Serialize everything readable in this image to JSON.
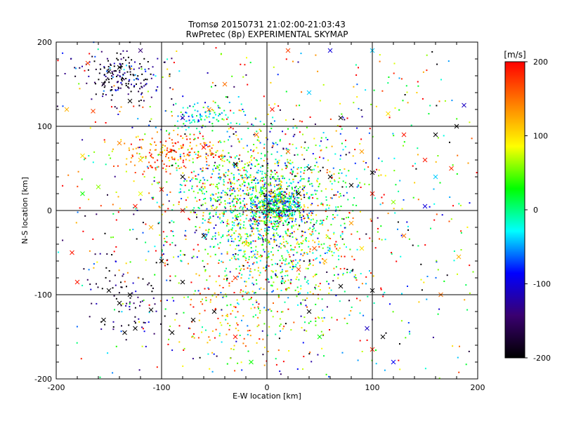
{
  "chart_data": {
    "type": "scatter",
    "title": "Tromsø 20150731 21:02:00-21:03:43",
    "subtitle": "RwPretec (8p) EXPERIMENTAL SKYMAP",
    "xlabel": "E-W location [km]",
    "ylabel": "N-S location [km]",
    "xlim": [
      -200,
      200
    ],
    "ylim": [
      -200,
      200
    ],
    "xticks": [
      "-200",
      "-100",
      "0",
      "100",
      "200"
    ],
    "yticks": [
      "-200",
      "-100",
      "0",
      "100",
      "200"
    ],
    "grid": true,
    "colorbar": {
      "title": "[m/s]",
      "range": [
        -200,
        200
      ],
      "ticks": [
        "200",
        "100",
        "0",
        "-100",
        "-200"
      ],
      "colormap": [
        "#000000",
        "#3a0070",
        "#0000ff",
        "#00ffff",
        "#00ff00",
        "#ffff00",
        "#ff8000",
        "#ff0000"
      ]
    },
    "clusters": [
      {
        "x": 10,
        "y": 5,
        "sx": 12,
        "sy": 10,
        "n": 420,
        "v": -40,
        "vs": 80
      },
      {
        "x": -10,
        "y": 25,
        "sx": 40,
        "sy": 30,
        "n": 700,
        "v": 20,
        "vs": 70
      },
      {
        "x": 10,
        "y": -40,
        "sx": 35,
        "sy": 45,
        "n": 650,
        "v": 30,
        "vs": 70
      },
      {
        "x": -90,
        "y": 70,
        "sx": 25,
        "sy": 12,
        "n": 180,
        "v": 150,
        "vs": 40
      },
      {
        "x": -140,
        "y": 160,
        "sx": 18,
        "sy": 15,
        "n": 190,
        "v": -160,
        "vs": 60
      },
      {
        "x": -60,
        "y": 110,
        "sx": 20,
        "sy": 8,
        "n": 90,
        "v": -20,
        "vs": 50
      },
      {
        "x": -130,
        "y": -110,
        "sx": 20,
        "sy": 25,
        "n": 80,
        "v": -170,
        "vs": 50
      },
      {
        "x": -40,
        "y": -130,
        "sx": 25,
        "sy": 20,
        "n": 80,
        "v": 130,
        "vs": 60
      },
      {
        "x": 0,
        "y": 0,
        "sx": 110,
        "sy": 110,
        "n": 1300,
        "v": 40,
        "vs": 140
      }
    ],
    "crosses": [
      {
        "x": -150,
        "y": 165,
        "v": -200
      },
      {
        "x": -140,
        "y": 170,
        "v": -200
      },
      {
        "x": -155,
        "y": 150,
        "v": -180
      },
      {
        "x": -120,
        "y": 190,
        "v": -140
      },
      {
        "x": -170,
        "y": 175,
        "v": 170
      },
      {
        "x": -165,
        "y": 118,
        "v": 170
      },
      {
        "x": -130,
        "y": 130,
        "v": -200
      },
      {
        "x": -80,
        "y": 110,
        "v": -120
      },
      {
        "x": -55,
        "y": 120,
        "v": 140
      },
      {
        "x": -40,
        "y": 150,
        "v": 150
      },
      {
        "x": 20,
        "y": 190,
        "v": 170
      },
      {
        "x": 60,
        "y": 190,
        "v": -100
      },
      {
        "x": 100,
        "y": 190,
        "v": -40
      },
      {
        "x": 115,
        "y": 115,
        "v": 100
      },
      {
        "x": 130,
        "y": 90,
        "v": 190
      },
      {
        "x": 160,
        "y": 90,
        "v": -200
      },
      {
        "x": 180,
        "y": 100,
        "v": -200
      },
      {
        "x": 187,
        "y": 125,
        "v": -110
      },
      {
        "x": 150,
        "y": 60,
        "v": 190
      },
      {
        "x": 175,
        "y": 50,
        "v": 180
      },
      {
        "x": 160,
        "y": 40,
        "v": -40
      },
      {
        "x": 100,
        "y": 45,
        "v": -200
      },
      {
        "x": 80,
        "y": 30,
        "v": -200
      },
      {
        "x": 60,
        "y": 40,
        "v": -200
      },
      {
        "x": 100,
        "y": 20,
        "v": 190
      },
      {
        "x": 120,
        "y": 10,
        "v": 60
      },
      {
        "x": 150,
        "y": 5,
        "v": -100
      },
      {
        "x": 130,
        "y": -30,
        "v": 150
      },
      {
        "x": 80,
        "y": -15,
        "v": 130
      },
      {
        "x": 90,
        "y": -45,
        "v": 100
      },
      {
        "x": 100,
        "y": -95,
        "v": -200
      },
      {
        "x": 110,
        "y": -150,
        "v": -200
      },
      {
        "x": 100,
        "y": -165,
        "v": 180
      },
      {
        "x": 95,
        "y": -140,
        "v": -110
      },
      {
        "x": 70,
        "y": -90,
        "v": -200
      },
      {
        "x": 40,
        "y": -120,
        "v": -200
      },
      {
        "x": 50,
        "y": -150,
        "v": 30
      },
      {
        "x": 120,
        "y": -180,
        "v": -90
      },
      {
        "x": 165,
        "y": -100,
        "v": 150
      },
      {
        "x": 182,
        "y": -55,
        "v": 120
      },
      {
        "x": -180,
        "y": -85,
        "v": 190
      },
      {
        "x": -185,
        "y": -50,
        "v": 190
      },
      {
        "x": -175,
        "y": 20,
        "v": 30
      },
      {
        "x": -160,
        "y": 28,
        "v": 60
      },
      {
        "x": -150,
        "y": -95,
        "v": -200
      },
      {
        "x": -140,
        "y": -110,
        "v": -200
      },
      {
        "x": -130,
        "y": -100,
        "v": -200
      },
      {
        "x": -155,
        "y": -130,
        "v": -200
      },
      {
        "x": -135,
        "y": -145,
        "v": -200
      },
      {
        "x": -125,
        "y": -140,
        "v": -200
      },
      {
        "x": -110,
        "y": -118,
        "v": -200
      },
      {
        "x": -100,
        "y": -60,
        "v": -200
      },
      {
        "x": -80,
        "y": -85,
        "v": -200
      },
      {
        "x": -50,
        "y": -120,
        "v": -200
      },
      {
        "x": -90,
        "y": -145,
        "v": -200
      },
      {
        "x": -70,
        "y": -130,
        "v": -200
      },
      {
        "x": -30,
        "y": -150,
        "v": 190
      },
      {
        "x": -15,
        "y": -180,
        "v": 30
      },
      {
        "x": -110,
        "y": -20,
        "v": 120
      },
      {
        "x": -120,
        "y": 20,
        "v": 80
      },
      {
        "x": -125,
        "y": 5,
        "v": 190
      },
      {
        "x": -100,
        "y": 25,
        "v": 190
      },
      {
        "x": -80,
        "y": 0,
        "v": 190
      },
      {
        "x": -60,
        "y": -30,
        "v": -200
      },
      {
        "x": -30,
        "y": -80,
        "v": 180
      },
      {
        "x": -20,
        "y": -40,
        "v": 100
      },
      {
        "x": 30,
        "y": -70,
        "v": 170
      },
      {
        "x": 45,
        "y": -45,
        "v": 160
      },
      {
        "x": 55,
        "y": -60,
        "v": 120
      },
      {
        "x": 30,
        "y": 20,
        "v": -200
      },
      {
        "x": 40,
        "y": 50,
        "v": -200
      },
      {
        "x": 20,
        "y": 70,
        "v": 150
      },
      {
        "x": -10,
        "y": 90,
        "v": 150
      },
      {
        "x": -30,
        "y": 55,
        "v": -200
      },
      {
        "x": -80,
        "y": 40,
        "v": -200
      },
      {
        "x": -60,
        "y": 75,
        "v": 190
      },
      {
        "x": 5,
        "y": 120,
        "v": 190
      },
      {
        "x": 40,
        "y": 140,
        "v": -40
      },
      {
        "x": 70,
        "y": 110,
        "v": -200
      },
      {
        "x": 90,
        "y": 70,
        "v": 130
      },
      {
        "x": -120,
        "y": 60,
        "v": 110
      },
      {
        "x": -140,
        "y": 80,
        "v": 140
      },
      {
        "x": -175,
        "y": 65,
        "v": 100
      },
      {
        "x": -190,
        "y": 120,
        "v": 120
      }
    ]
  }
}
